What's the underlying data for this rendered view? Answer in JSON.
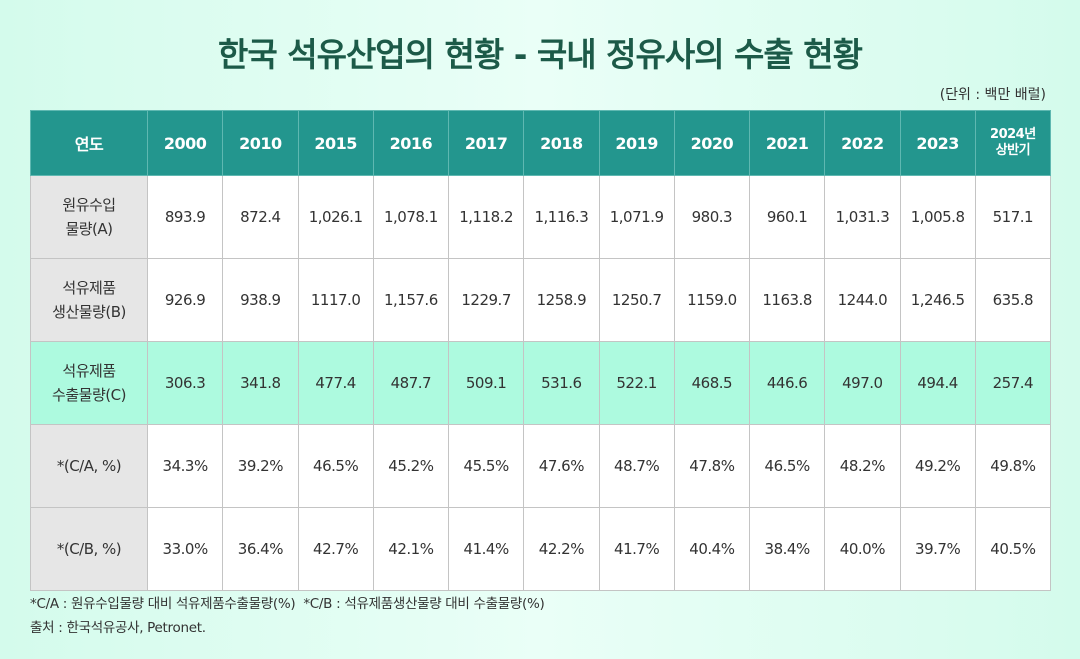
{
  "title": "한국 석유산업의 현황 - 국내 정유사의 수출 현황",
  "unit": "(단위 : 백만 배럴)",
  "chart_data": {
    "type": "table",
    "title": "한국 석유산업의 현황 - 국내 정유사의 수출 현황",
    "unit": "(단위 : 백만 배럴)",
    "corner_header": "연도",
    "columns": [
      "2000",
      "2010",
      "2015",
      "2016",
      "2017",
      "2018",
      "2019",
      "2020",
      "2021",
      "2022",
      "2023",
      "2024년\n상반기"
    ],
    "rows": [
      {
        "label": "원유수입\n물량(A)",
        "values": [
          "893.9",
          "872.4",
          "1,026.1",
          "1,078.1",
          "1,118.2",
          "1,116.3",
          "1,071.9",
          "980.3",
          "960.1",
          "1,031.3",
          "1,005.8",
          "517.1"
        ]
      },
      {
        "label": "석유제품\n생산물량(B)",
        "values": [
          "926.9",
          "938.9",
          "1117.0",
          "1,157.6",
          "1229.7",
          "1258.9",
          "1250.7",
          "1159.0",
          "1163.8",
          "1244.0",
          "1,246.5",
          "635.8"
        ]
      },
      {
        "label": "석유제품\n수출물량(C)",
        "values": [
          "306.3",
          "341.8",
          "477.4",
          "487.7",
          "509.1",
          "531.6",
          "522.1",
          "468.5",
          "446.6",
          "497.0",
          "494.4",
          "257.4"
        ],
        "highlighted": true
      },
      {
        "label": "*(C/A, %)",
        "values": [
          "34.3%",
          "39.2%",
          "46.5%",
          "45.2%",
          "45.5%",
          "47.6%",
          "48.7%",
          "47.8%",
          "46.5%",
          "48.2%",
          "49.2%",
          "49.8%"
        ]
      },
      {
        "label": "*(C/B, %)",
        "values": [
          "33.0%",
          "36.4%",
          "42.7%",
          "42.1%",
          "41.4%",
          "42.2%",
          "41.7%",
          "40.4%",
          "38.4%",
          "40.0%",
          "39.7%",
          "40.5%"
        ]
      }
    ],
    "colors": {
      "header": "#23968e",
      "label_column": "#e6e6e6",
      "highlight_row": "#adfadf",
      "title": "#1c5a48"
    }
  },
  "notes": {
    "definitions": "*C/A : 원유수입물량 대비 석유제품수출물량(%)  *C/B : 석유제품생산물량 대비 수출물량(%)",
    "source": "출처 : 한국석유공사, Petronet."
  }
}
